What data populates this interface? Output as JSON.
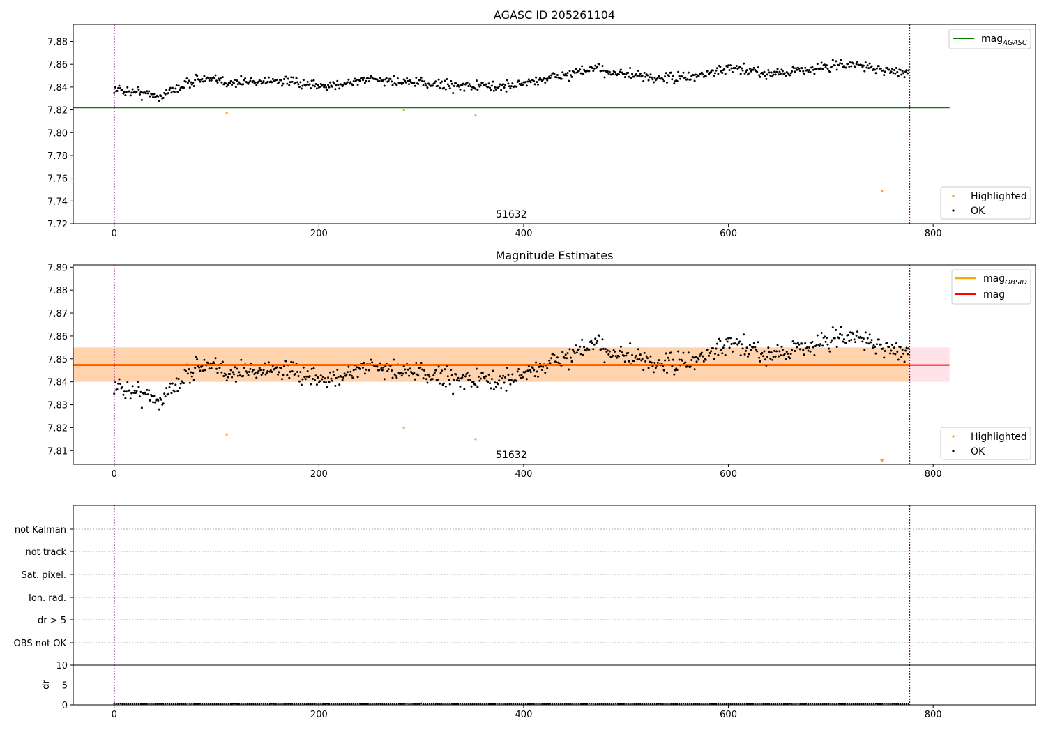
{
  "chart_data": [
    {
      "type": "scatter",
      "title": "AGASC ID 205261104",
      "annotation": "51632",
      "xlim": [
        -40,
        900
      ],
      "ylim": [
        7.72,
        7.895
      ],
      "xticks": [
        0,
        200,
        400,
        600,
        800
      ],
      "yticks": [
        7.72,
        7.74,
        7.76,
        7.78,
        7.8,
        7.82,
        7.84,
        7.86,
        7.88
      ],
      "vlines": [
        0,
        777
      ],
      "hlines": [
        {
          "name": "mag_AGASC",
          "y": 7.822,
          "x_range": [
            -40,
            816
          ],
          "color": "#008000"
        }
      ],
      "series": [
        {
          "name": "OK",
          "color": "#000000",
          "x_range": [
            0,
            776
          ],
          "trend": [
            [
              0,
              7.838
            ],
            [
              20,
              7.836
            ],
            [
              45,
              7.832
            ],
            [
              80,
              7.847
            ],
            [
              120,
              7.844
            ],
            [
              160,
              7.846
            ],
            [
              200,
              7.84
            ],
            [
              250,
              7.847
            ],
            [
              300,
              7.843
            ],
            [
              380,
              7.84
            ],
            [
              420,
              7.847
            ],
            [
              470,
              7.856
            ],
            [
              520,
              7.848
            ],
            [
              560,
              7.848
            ],
            [
              600,
              7.856
            ],
            [
              640,
              7.852
            ],
            [
              690,
              7.857
            ],
            [
              720,
              7.86
            ],
            [
              776,
              7.852
            ]
          ],
          "scatter": 0.005
        },
        {
          "name": "Highlighted",
          "color": "#ffa500",
          "points": [
            [
              110,
              7.817
            ],
            [
              283,
              7.82
            ],
            [
              353,
              7.815
            ],
            [
              750,
              7.749
            ]
          ]
        }
      ],
      "legend": [
        {
          "location": "upper-right",
          "entries": [
            {
              "label": "mag",
              "subscript": "AGASC",
              "color": "#008000",
              "kind": "line"
            }
          ]
        },
        {
          "location": "lower-right",
          "entries": [
            {
              "label": "Highlighted",
              "color": "#ffa500",
              "kind": "dot"
            },
            {
              "label": "OK",
              "color": "#000000",
              "kind": "dot"
            }
          ]
        }
      ]
    },
    {
      "type": "scatter",
      "title": "Magnitude Estimates",
      "annotation": "51632",
      "xlim": [
        -40,
        900
      ],
      "ylim": [
        7.804,
        7.891
      ],
      "xticks": [
        0,
        200,
        400,
        600,
        800
      ],
      "yticks": [
        7.81,
        7.82,
        7.83,
        7.84,
        7.85,
        7.86,
        7.87,
        7.88,
        7.89
      ],
      "vlines": [
        0,
        777
      ],
      "bands": [
        {
          "name": "mag band",
          "y": [
            7.84,
            7.855
          ],
          "x_range": [
            -40,
            816
          ],
          "color": "#ffc0cb",
          "opacity": 0.45
        },
        {
          "name": "mag_OBSID band",
          "y": [
            7.84,
            7.855
          ],
          "x_range": [
            -40,
            777
          ],
          "color": "#ffa500",
          "opacity": 0.25
        }
      ],
      "hlines": [
        {
          "name": "mag_OBSID",
          "y": 7.8475,
          "x_range": [
            -40,
            777
          ],
          "color": "#ffa500"
        },
        {
          "name": "mag",
          "y": 7.8473,
          "x_range": [
            -40,
            816
          ],
          "color": "#ff0000"
        }
      ],
      "series": [
        {
          "name": "OK",
          "color": "#000000",
          "same_as_panel": 0
        },
        {
          "name": "Highlighted",
          "color": "#ffa500",
          "points": [
            [
              110,
              7.817
            ],
            [
              283,
              7.82
            ],
            [
              353,
              7.815
            ]
          ]
        }
      ],
      "offscale_marker": {
        "x": 750,
        "color": "#ffa500"
      },
      "legend": [
        {
          "location": "upper-right",
          "entries": [
            {
              "label": "mag",
              "subscript": "OBSID",
              "color": "#ffa500",
              "kind": "line"
            },
            {
              "label": "mag",
              "subscript": "",
              "color": "#ff0000",
              "kind": "line"
            }
          ]
        },
        {
          "location": "lower-right",
          "entries": [
            {
              "label": "Highlighted",
              "color": "#ffa500",
              "kind": "dot"
            },
            {
              "label": "OK",
              "color": "#000000",
              "kind": "dot"
            }
          ]
        }
      ]
    },
    {
      "type": "table",
      "title": "",
      "categories": [
        "not Kalman",
        "not track",
        "Sat. pixel.",
        "Ion. rad.",
        "dr > 5",
        "OBS not OK"
      ],
      "xlim": [
        -40,
        900
      ],
      "vlines": [
        0,
        777
      ],
      "flags": []
    },
    {
      "type": "scatter",
      "title": "",
      "ylabel": "dr",
      "xlim": [
        -40,
        900
      ],
      "ylim": [
        0,
        10
      ],
      "xticks": [
        0,
        200,
        400,
        600,
        800
      ],
      "yticks": [
        0,
        5,
        10
      ],
      "vlines": [
        0,
        777
      ],
      "series": [
        {
          "name": "dr",
          "color": "#000000",
          "x_range": [
            0,
            776
          ],
          "base": 0.2
        }
      ]
    }
  ]
}
